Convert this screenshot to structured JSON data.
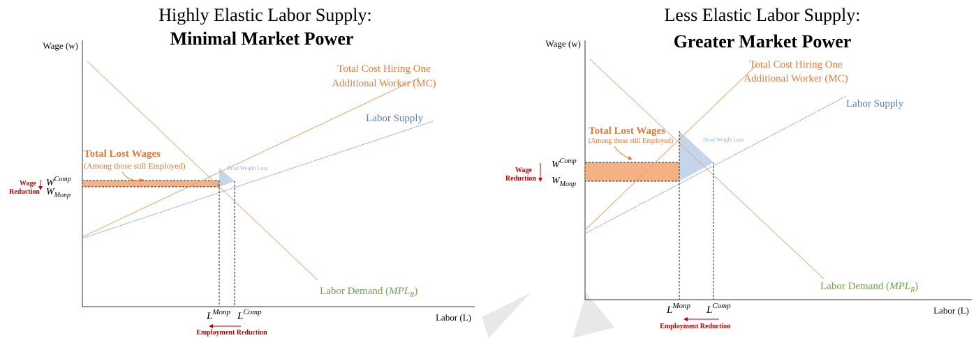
{
  "panels": [
    {
      "title": [
        "Highly Elastic Labor Supply:",
        "Minimal Market Power"
      ],
      "y_axis_label": "Wage (w)",
      "x_axis_label": "Labor (L)",
      "mc_label": [
        "Total Cost Hiring One",
        "Additional Worker (MC)"
      ],
      "supply_label": "Labor Supply",
      "demand_label": [
        "Labor Demand (",
        "MPL",
        "R",
        ")"
      ],
      "lost_wages_title": "Total Lost Wages",
      "lost_wages_note": "(Among those still Employed)",
      "dwl_label": "Dead Weight Loss",
      "wage_reduction": [
        "Wage",
        "Reduction"
      ],
      "w_comp": [
        "W",
        "Comp"
      ],
      "w_monp": [
        "W",
        "Monp"
      ],
      "l_monp": [
        "L",
        "Monp"
      ],
      "l_comp": [
        "L",
        "Comp"
      ],
      "employment_reduction": "Employment Reduction"
    },
    {
      "title": [
        "Less Elastic Labor Supply:",
        "Greater Market Power"
      ],
      "y_axis_label": "Wage (w)",
      "x_axis_label": "Labor (L)",
      "mc_label": [
        "Total Cost Hiring One",
        "Additional Worker (MC)"
      ],
      "supply_label": "Labor Supply",
      "demand_label": [
        "Labor Demand (",
        "MPL",
        "R",
        ")"
      ],
      "lost_wages_title": "Total Lost Wages",
      "lost_wages_note": "(Among those still Employed)",
      "dwl_label": "Dead Weight Loss",
      "wage_reduction": [
        "Wage",
        "Reduction"
      ],
      "w_comp": [
        "W",
        "Comp"
      ],
      "w_monp": [
        "W",
        "Monp"
      ],
      "l_monp": [
        "L",
        "Monp"
      ],
      "l_comp": [
        "L",
        "Comp"
      ],
      "employment_reduction": "Employment Reduction"
    }
  ]
}
